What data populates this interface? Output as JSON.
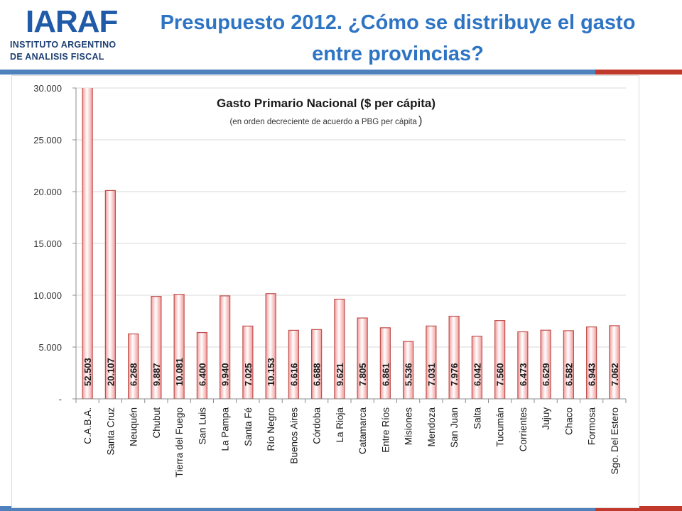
{
  "logo": {
    "mark": "IARAF",
    "line1": "INSTITUTO ARGENTINO",
    "line2": "DE ANALISIS FISCAL"
  },
  "slide": {
    "title_line1": "Presupuesto 2012. ¿Cómo se distribuye el gasto",
    "title_line2": "entre provincias?"
  },
  "colors": {
    "title": "#2e74c4",
    "bar_fill_top": "#ffffff",
    "bar_fill_bottom": "#f4a2a2",
    "bar_stroke": "#c0504d",
    "stripe_blue": "#4f81bd",
    "stripe_red": "#c0392b"
  },
  "chart_data": {
    "type": "bar",
    "title": "Gasto Primario Nacional ($ per cápita)",
    "subtitle_main": "(en orden decreciente de acuerdo a PBG per cápita",
    "subtitle_close": ")",
    "categories": [
      "C.A.B.A.",
      "Santa Cruz",
      "Neuquén",
      "Chubut",
      "Tierra del Fuego",
      "San Luis",
      "La Pampa",
      "Santa Fé",
      "Río Negro",
      "Buenos Aires",
      "Córdoba",
      "La Rioja",
      "Catamarca",
      "Entre Ríos",
      "Misiones",
      "Mendoza",
      "San Juan",
      "Salta",
      "Tucumán",
      "Corrientes",
      "Jujuy",
      "Chaco",
      "Formosa",
      "Sgo. Del Estero"
    ],
    "values": [
      52503,
      20107,
      6268,
      9887,
      10081,
      6400,
      9940,
      7025,
      10153,
      6616,
      6688,
      9621,
      7805,
      6861,
      5536,
      7031,
      7976,
      6042,
      7560,
      6473,
      6629,
      6582,
      6943,
      7062
    ],
    "data_labels": [
      "52.503",
      "20.107",
      "6.268",
      "9.887",
      "10.081",
      "6.400",
      "9.940",
      "7.025",
      "10.153",
      "6.616",
      "6.688",
      "9.621",
      "7.805",
      "6.861",
      "5.536",
      "7.031",
      "7.976",
      "6.042",
      "7.560",
      "6.473",
      "6.629",
      "6.582",
      "6.943",
      "7.062"
    ],
    "y_ticks": [
      {
        "value": 0,
        "label": "-"
      },
      {
        "value": 5000,
        "label": "5.000"
      },
      {
        "value": 10000,
        "label": "10.000"
      },
      {
        "value": 15000,
        "label": "15.000"
      },
      {
        "value": 20000,
        "label": "20.000"
      },
      {
        "value": 25000,
        "label": "25.000"
      },
      {
        "value": 30000,
        "label": "30.000"
      }
    ],
    "ylim": [
      0,
      30000
    ],
    "grid": true,
    "legend": "none",
    "xlabel": "",
    "ylabel": ""
  }
}
